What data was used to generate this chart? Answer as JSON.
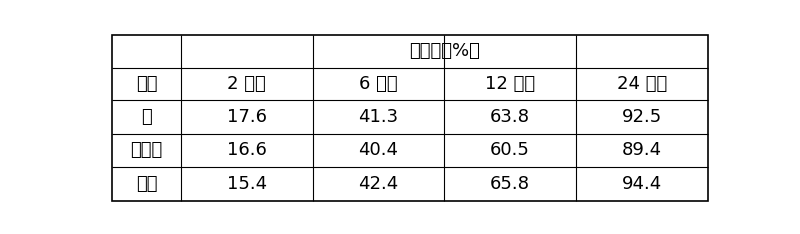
{
  "header_main": "释放度（%）",
  "col_headers": [
    "2 小时",
    "6 小时",
    "12 小时",
    "24 小时"
  ],
  "row_label_header": "时间",
  "row_labels": [
    "片",
    "包衣片",
    "胶囊"
  ],
  "data_rows": [
    [
      "17.6",
      "41.3",
      "63.8",
      "92.5"
    ],
    [
      "16.6",
      "40.4",
      "60.5",
      "89.4"
    ],
    [
      "15.4",
      "42.4",
      "65.8",
      "94.4"
    ]
  ],
  "bg_color": "#ffffff",
  "line_color": "#000000",
  "font_size": 13,
  "fig_width": 8.0,
  "fig_height": 2.34,
  "dpi": 100
}
